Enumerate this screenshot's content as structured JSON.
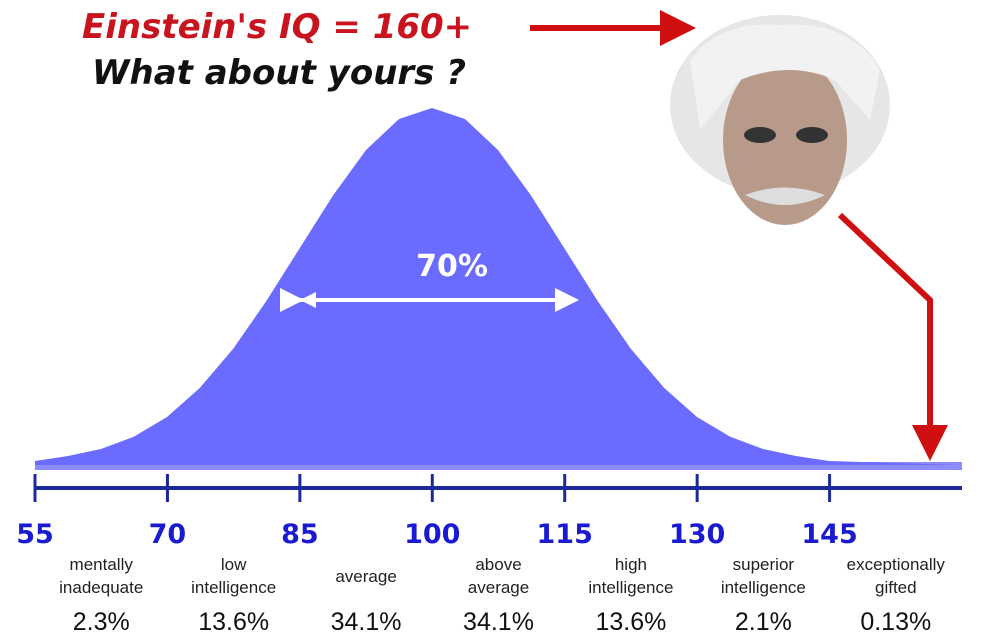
{
  "chart_data": {
    "type": "distribution",
    "title": "Einstein's IQ = 160+",
    "subtitle": "What about yours ?",
    "annotation": "70%",
    "xlim": [
      55,
      160
    ],
    "xticks": [
      55,
      70,
      85,
      100,
      115,
      130,
      145
    ],
    "categories": [
      "mentally\ninadequate",
      "low\nintelligence",
      "average",
      "above\naverage",
      "high\nintelligence",
      "superior\nintelligence",
      "exceptionally\ngifted"
    ],
    "values": [
      2.3,
      13.6,
      34.1,
      34.1,
      13.6,
      2.1,
      0.13
    ],
    "value_labels": [
      "2.3%",
      "13.6%",
      "34.1%",
      "34.1%",
      "13.6%",
      "2.1%",
      "0.13%"
    ],
    "color": "#6b6bff"
  }
}
